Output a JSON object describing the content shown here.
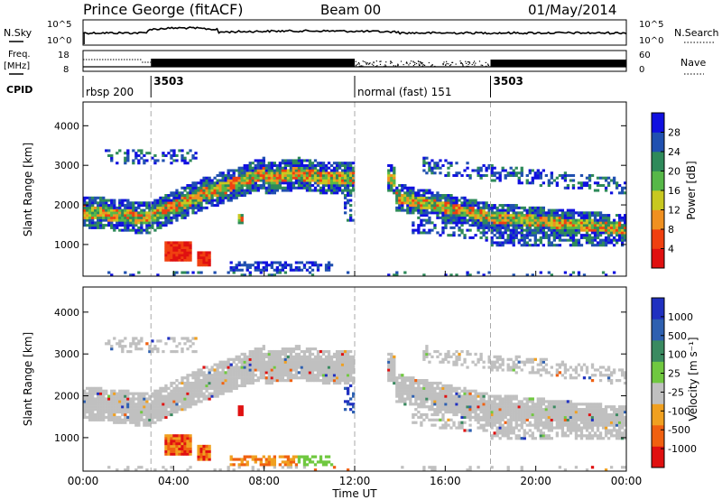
{
  "header": {
    "station": "Prince George (fitACF)",
    "beam": "Beam 00",
    "date": "01/May/2014"
  },
  "noise_panel": {
    "left_label": "N.Sky",
    "right_label": "N.Search",
    "left_ticks": [
      "10^5",
      "10^0"
    ],
    "right_ticks": [
      "10^5",
      "10^0"
    ]
  },
  "freq_panel": {
    "left_label_1": "Freq.",
    "left_label_2": "[MHz]",
    "right_label": "Nave",
    "left_ticks": [
      "18",
      "8"
    ],
    "right_ticks": [
      "60",
      "0"
    ]
  },
  "cpid_panel": {
    "label": "CPID",
    "segments": [
      {
        "label": "rbsp 200",
        "start_h": 0.0
      },
      {
        "label": "3503",
        "start_h": 3.0
      },
      {
        "label": "normal (fast) 151",
        "start_h": 12.0
      },
      {
        "label": "3503",
        "start_h": 18.0
      }
    ]
  },
  "chart_data": [
    {
      "type": "heatmap",
      "name": "Power",
      "ylabel": "Slant Range [km]",
      "yticks": [
        "4000",
        "3000",
        "2000",
        "1000"
      ],
      "colorbar_label": "Power [dB]",
      "colorbar_ticks": [
        "28",
        "24",
        "20",
        "16",
        "12",
        "8",
        "4"
      ],
      "colors": [
        "#1010e0",
        "#2050b0",
        "#2e8a5a",
        "#56b848",
        "#c8c820",
        "#f09020",
        "#f04010",
        "#e01010"
      ]
    },
    {
      "type": "heatmap",
      "name": "Velocity",
      "ylabel": "Slant Range [km]",
      "yticks": [
        "4000",
        "3000",
        "2000",
        "1000"
      ],
      "colorbar_label": "Velocity [m s⁻¹]",
      "colorbar_ticks": [
        "1000",
        "500",
        "100",
        "25",
        "-25",
        "-100",
        "-500",
        "-1000"
      ],
      "colors": [
        "#2030c0",
        "#2e60b0",
        "#3a8a60",
        "#70c840",
        "#c0c0c0",
        "#c0c0c0",
        "#f0a020",
        "#f06010",
        "#e01010"
      ]
    }
  ],
  "x_axis": {
    "label": "Time UT",
    "ticks": [
      "00:00",
      "04:00",
      "08:00",
      "12:00",
      "16:00",
      "20:00",
      "00:00"
    ]
  }
}
